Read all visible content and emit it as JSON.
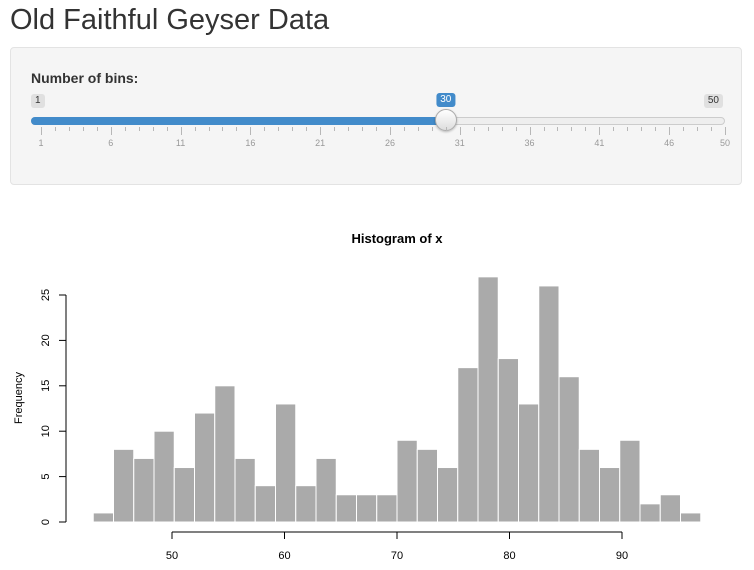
{
  "page": {
    "title": "Old Faithful Geyser Data"
  },
  "sidebar": {
    "slider": {
      "label": "Number of bins:",
      "min": 1,
      "max": 50,
      "value": 30,
      "min_label": "1",
      "max_label": "50",
      "value_label": "30",
      "tick_labels": [
        "1",
        "6",
        "11",
        "16",
        "21",
        "26",
        "31",
        "36",
        "41",
        "46",
        "50"
      ],
      "accent_color": "#428bca"
    }
  },
  "chart_data": {
    "type": "bar",
    "title": "Histogram of x",
    "xlabel": "",
    "ylabel": "Frequency",
    "bin_width": 1.8,
    "bin_start": 43.0,
    "x_ticks": [
      50,
      60,
      70,
      80,
      90
    ],
    "x_tick_labels": [
      "50",
      "60",
      "70",
      "80",
      "90"
    ],
    "y_ticks": [
      0,
      5,
      10,
      15,
      20,
      25
    ],
    "y_tick_labels": [
      "0",
      "5",
      "10",
      "15",
      "20",
      "25"
    ],
    "values": [
      1,
      8,
      7,
      10,
      6,
      12,
      15,
      7,
      4,
      13,
      4,
      7,
      3,
      3,
      3,
      9,
      8,
      6,
      17,
      27,
      18,
      13,
      26,
      16,
      8,
      6,
      9,
      2,
      3,
      1
    ],
    "ylim": [
      0,
      27
    ],
    "bar_color": "#aaaaaa",
    "grid": false
  }
}
